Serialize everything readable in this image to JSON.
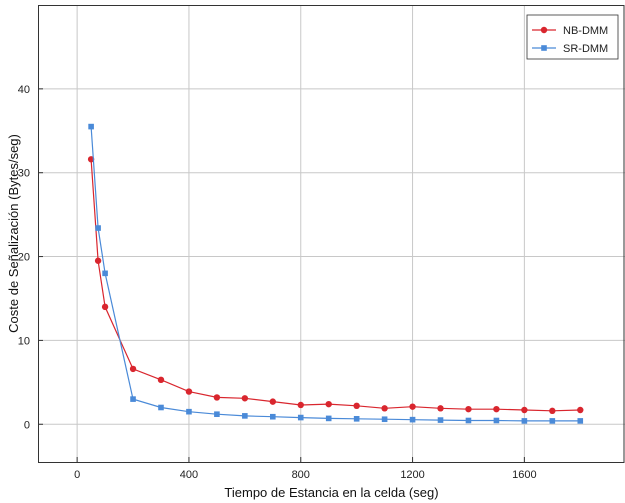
{
  "chart_data": {
    "type": "line",
    "title": "",
    "xlabel": "Tiempo de Estancia en la celda (seg)",
    "ylabel": "Coste de Señalización (Bytes/seg)",
    "xlim": [
      -140,
      1960
    ],
    "ylim": [
      -4.5,
      50
    ],
    "xticks": [
      0,
      400,
      800,
      1200,
      1600
    ],
    "yticks": [
      0,
      10,
      20,
      30,
      40
    ],
    "grid": true,
    "legend_position": "top-right",
    "series": [
      {
        "name": "NB-DMM",
        "color": "#d9262e",
        "marker": "circle",
        "x": [
          50,
          75,
          100,
          200,
          300,
          400,
          500,
          600,
          700,
          800,
          900,
          1000,
          1100,
          1200,
          1300,
          1400,
          1500,
          1600,
          1700,
          1800
        ],
        "y": [
          31.6,
          19.5,
          14.0,
          6.6,
          5.3,
          3.9,
          3.2,
          3.1,
          2.7,
          2.3,
          2.4,
          2.2,
          1.9,
          2.1,
          1.9,
          1.8,
          1.8,
          1.7,
          1.6,
          1.7
        ]
      },
      {
        "name": "SR-DMM",
        "color": "#4a8ad8",
        "marker": "square",
        "x": [
          50,
          75,
          100,
          200,
          300,
          400,
          500,
          600,
          700,
          800,
          900,
          1000,
          1100,
          1200,
          1300,
          1400,
          1500,
          1600,
          1700,
          1800
        ],
        "y": [
          35.5,
          23.4,
          18.0,
          3.0,
          2.0,
          1.5,
          1.2,
          1.0,
          0.9,
          0.8,
          0.7,
          0.65,
          0.6,
          0.55,
          0.5,
          0.45,
          0.45,
          0.4,
          0.4,
          0.4
        ]
      }
    ]
  }
}
